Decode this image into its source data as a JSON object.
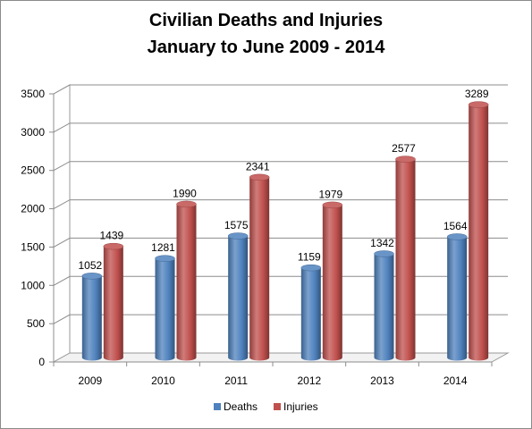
{
  "chart_data": {
    "type": "bar",
    "title_lines": [
      "Civilian Deaths and Injuries",
      "January to June 2009 - 2014"
    ],
    "categories": [
      "2009",
      "2010",
      "2011",
      "2012",
      "2013",
      "2014"
    ],
    "series": [
      {
        "name": "Deaths",
        "values": [
          1052,
          1281,
          1575,
          1159,
          1342,
          1564
        ],
        "color": "#4f81bd"
      },
      {
        "name": "Injuries",
        "values": [
          1439,
          1990,
          2341,
          1979,
          2577,
          3289
        ],
        "color": "#c0504d"
      }
    ],
    "yticks": [
      "0",
      "500",
      "1000",
      "1500",
      "2000",
      "2500",
      "3000",
      "3500"
    ],
    "ylim": [
      0,
      3500
    ],
    "grid": true,
    "legend_position": "bottom"
  }
}
